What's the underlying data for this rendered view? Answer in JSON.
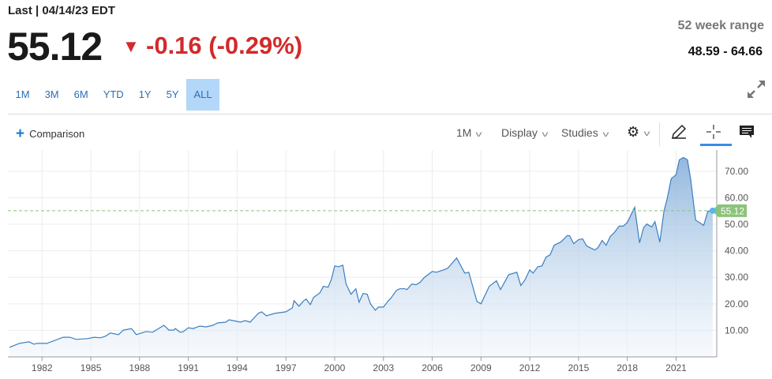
{
  "header": {
    "last_label": "Last | 04/14/23 EDT",
    "price": "55.12",
    "change": "-0.16 (-0.29%)",
    "direction": "down",
    "down_color": "#d32a2a",
    "week52_label": "52 week range",
    "week52_value": "48.59 - 64.66"
  },
  "range_tabs": [
    {
      "label": "1M"
    },
    {
      "label": "3M"
    },
    {
      "label": "6M"
    },
    {
      "label": "YTD"
    },
    {
      "label": "1Y"
    },
    {
      "label": "5Y"
    },
    {
      "label": "ALL",
      "active": true
    }
  ],
  "toolbar": {
    "comparison_label": "Comparison",
    "interval_label": "1M",
    "display_label": "Display",
    "studies_label": "Studies",
    "icons": [
      "gear-icon",
      "pencil-icon",
      "crosshair-icon",
      "comment-icon",
      "expand-icon"
    ]
  },
  "chart_data": {
    "type": "area",
    "x_ticks": [
      "1982",
      "1985",
      "1988",
      "1991",
      "1994",
      "1997",
      "2000",
      "2003",
      "2006",
      "2009",
      "2012",
      "2015",
      "2018",
      "2021"
    ],
    "y_ticks": [
      "10.00",
      "20.00",
      "30.00",
      "40.00",
      "50.00",
      "60.00",
      "70.00"
    ],
    "xlim": [
      1979.9,
      2023.5
    ],
    "ylim": [
      0,
      78
    ],
    "grid": true,
    "line_color": "#3a7fc1",
    "last_value": 55.12,
    "last_value_label": "55.12",
    "last_value_color": "#8bc37a",
    "points": [
      [
        1980.0,
        3.6
      ],
      [
        1980.6,
        5.1
      ],
      [
        1981.2,
        5.7
      ],
      [
        1981.5,
        4.8
      ],
      [
        1981.7,
        5.1
      ],
      [
        1982.3,
        5.1
      ],
      [
        1983.3,
        7.4
      ],
      [
        1983.7,
        7.4
      ],
      [
        1984.1,
        6.6
      ],
      [
        1984.8,
        6.9
      ],
      [
        1985.2,
        7.4
      ],
      [
        1985.6,
        7.2
      ],
      [
        1985.9,
        7.8
      ],
      [
        1986.2,
        9.0
      ],
      [
        1986.7,
        8.4
      ],
      [
        1987.0,
        10.1
      ],
      [
        1987.5,
        10.7
      ],
      [
        1987.8,
        8.4
      ],
      [
        1988.4,
        9.6
      ],
      [
        1988.8,
        9.3
      ],
      [
        1989.5,
        11.9
      ],
      [
        1989.8,
        10.1
      ],
      [
        1990.1,
        10.1
      ],
      [
        1990.2,
        10.7
      ],
      [
        1990.5,
        9.3
      ],
      [
        1990.7,
        9.6
      ],
      [
        1991.0,
        11.0
      ],
      [
        1991.3,
        10.7
      ],
      [
        1991.7,
        11.6
      ],
      [
        1992.1,
        11.3
      ],
      [
        1992.5,
        11.9
      ],
      [
        1992.8,
        12.8
      ],
      [
        1993.3,
        13.1
      ],
      [
        1993.5,
        14.0
      ],
      [
        1994.0,
        13.4
      ],
      [
        1994.2,
        13.1
      ],
      [
        1994.5,
        13.7
      ],
      [
        1994.8,
        13.1
      ],
      [
        1995.3,
        16.4
      ],
      [
        1995.5,
        17.0
      ],
      [
        1995.8,
        15.5
      ],
      [
        1996.3,
        16.4
      ],
      [
        1997.0,
        17.0
      ],
      [
        1997.4,
        18.5
      ],
      [
        1997.5,
        21.2
      ],
      [
        1997.8,
        19.1
      ],
      [
        1998.1,
        21.2
      ],
      [
        1998.25,
        21.8
      ],
      [
        1998.5,
        19.7
      ],
      [
        1998.7,
        22.4
      ],
      [
        1999.1,
        24.2
      ],
      [
        1999.3,
        26.6
      ],
      [
        1999.6,
        26.3
      ],
      [
        1999.8,
        29.3
      ],
      [
        2000.0,
        34.3
      ],
      [
        2000.25,
        34.0
      ],
      [
        2000.5,
        34.6
      ],
      [
        2000.7,
        27.5
      ],
      [
        2001.0,
        23.6
      ],
      [
        2001.3,
        25.7
      ],
      [
        2001.5,
        20.6
      ],
      [
        2001.75,
        23.9
      ],
      [
        2002.0,
        23.6
      ],
      [
        2002.2,
        20.0
      ],
      [
        2002.5,
        17.6
      ],
      [
        2002.7,
        18.8
      ],
      [
        2003.0,
        18.8
      ],
      [
        2003.3,
        21.2
      ],
      [
        2003.45,
        22.1
      ],
      [
        2003.8,
        25.1
      ],
      [
        2004.0,
        25.7
      ],
      [
        2004.3,
        25.7
      ],
      [
        2004.45,
        25.4
      ],
      [
        2004.75,
        27.5
      ],
      [
        2005.0,
        27.2
      ],
      [
        2005.25,
        28.1
      ],
      [
        2005.5,
        29.9
      ],
      [
        2006.0,
        32.2
      ],
      [
        2006.25,
        31.9
      ],
      [
        2006.7,
        32.8
      ],
      [
        2006.95,
        33.4
      ],
      [
        2007.5,
        37.3
      ],
      [
        2008.0,
        31.6
      ],
      [
        2008.25,
        31.9
      ],
      [
        2008.45,
        27.5
      ],
      [
        2008.75,
        20.9
      ],
      [
        2009.0,
        20.0
      ],
      [
        2009.5,
        26.6
      ],
      [
        2009.95,
        28.7
      ],
      [
        2010.2,
        25.4
      ],
      [
        2010.7,
        31.0
      ],
      [
        2011.2,
        31.9
      ],
      [
        2011.45,
        26.9
      ],
      [
        2011.7,
        29.0
      ],
      [
        2012.0,
        32.8
      ],
      [
        2012.2,
        31.6
      ],
      [
        2012.5,
        34.0
      ],
      [
        2012.75,
        34.3
      ],
      [
        2013.0,
        37.6
      ],
      [
        2013.25,
        38.5
      ],
      [
        2013.5,
        42.1
      ],
      [
        2013.9,
        43.3
      ],
      [
        2014.3,
        45.7
      ],
      [
        2014.45,
        45.7
      ],
      [
        2014.7,
        42.7
      ],
      [
        2015.0,
        44.2
      ],
      [
        2015.25,
        44.5
      ],
      [
        2015.5,
        41.8
      ],
      [
        2015.7,
        41.2
      ],
      [
        2016.0,
        40.3
      ],
      [
        2016.2,
        41.2
      ],
      [
        2016.45,
        43.9
      ],
      [
        2016.7,
        42.1
      ],
      [
        2016.95,
        45.4
      ],
      [
        2017.2,
        46.9
      ],
      [
        2017.5,
        49.3
      ],
      [
        2017.75,
        49.3
      ],
      [
        2018.0,
        50.7
      ],
      [
        2018.45,
        56.4
      ],
      [
        2018.75,
        43.0
      ],
      [
        2019.0,
        48.7
      ],
      [
        2019.2,
        50.1
      ],
      [
        2019.5,
        49.0
      ],
      [
        2019.7,
        51.0
      ],
      [
        2020.0,
        43.3
      ],
      [
        2020.25,
        54.9
      ],
      [
        2020.45,
        59.7
      ],
      [
        2020.7,
        67.2
      ],
      [
        2021.0,
        68.7
      ],
      [
        2021.2,
        74.3
      ],
      [
        2021.45,
        75.2
      ],
      [
        2021.7,
        74.3
      ],
      [
        2021.9,
        66.9
      ],
      [
        2022.2,
        51.6
      ],
      [
        2022.7,
        49.6
      ],
      [
        2022.95,
        54.9
      ],
      [
        2023.25,
        55.12
      ]
    ]
  }
}
